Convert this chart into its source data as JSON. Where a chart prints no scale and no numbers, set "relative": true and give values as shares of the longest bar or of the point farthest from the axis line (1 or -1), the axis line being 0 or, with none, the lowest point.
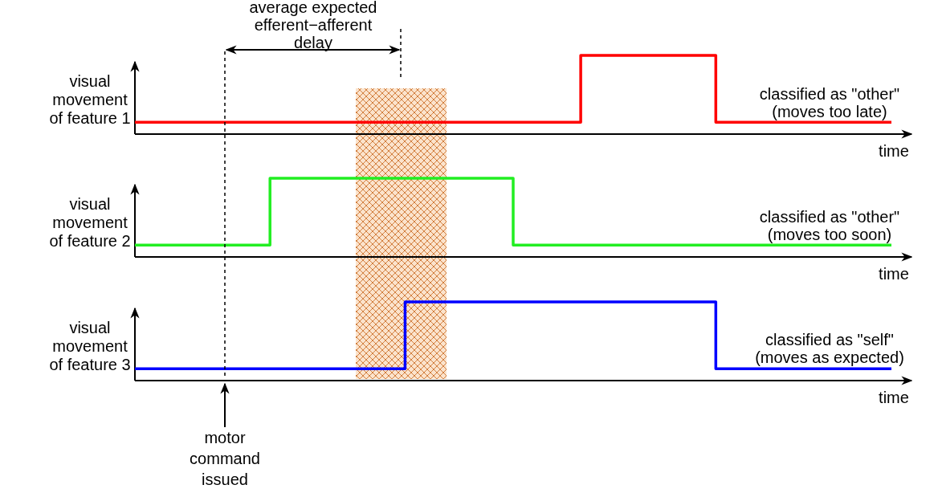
{
  "chart_data": [
    {
      "type": "step",
      "relative": true,
      "categories": [
        null,
        null,
        null,
        null,
        null,
        null,
        null,
        null,
        null,
        null,
        null,
        null,
        null,
        null,
        null,
        null,
        null,
        null,
        null,
        null,
        null,
        null,
        null,
        null,
        null,
        null,
        null,
        null,
        null,
        null,
        null,
        null,
        null,
        null,
        null,
        null,
        null,
        null,
        null,
        null,
        null,
        null,
        null,
        null,
        null,
        null,
        null,
        null,
        null,
        null,
        null,
        null,
        null,
        null,
        null,
        null,
        null
      ],
      "series": [
        {
          "color": "#ff0000",
          "values": [
            0.15,
            0.15,
            0.15,
            0.15,
            0.15,
            0.15,
            0.15,
            0.15,
            0.15,
            0.15,
            0.15,
            0.15,
            0.15,
            0.15,
            0.15,
            0.15,
            0.15,
            0.15,
            0.15,
            0.15,
            0.15,
            0.15,
            0.15,
            0.15,
            0.15,
            0.15,
            0.15,
            0.15,
            0.15,
            0.15,
            0.15,
            0.15,
            0.15,
            1,
            1,
            1,
            1,
            1,
            1,
            1,
            1,
            1,
            1,
            0.15,
            0.15,
            0.15,
            0.15,
            0.15,
            0.15,
            0.15,
            0.15,
            0.15,
            0.15,
            0.15,
            0.15,
            0.15,
            0.15
          ]
        }
      ],
      "ylabel": "visual\nmovement\nof feature 1",
      "xlabel": "time",
      "annotations": [
        "classified as \"other\"\n(moves too late)",
        "average expected\nefferent−afferent\ndelay"
      ]
    },
    {
      "type": "step",
      "relative": true,
      "categories": [
        null,
        null,
        null,
        null,
        null,
        null,
        null,
        null,
        null,
        null,
        null,
        null,
        null,
        null,
        null,
        null,
        null,
        null,
        null,
        null,
        null,
        null,
        null,
        null,
        null,
        null,
        null,
        null,
        null,
        null,
        null,
        null,
        null,
        null,
        null,
        null,
        null,
        null,
        null,
        null,
        null,
        null,
        null,
        null,
        null,
        null,
        null,
        null,
        null,
        null,
        null,
        null,
        null,
        null,
        null,
        null,
        null
      ],
      "series": [
        {
          "color": "#22ee22",
          "values": [
            0.15,
            0.15,
            0.15,
            0.15,
            0.15,
            0.15,
            0.15,
            0.15,
            0.15,
            0.15,
            1,
            1,
            1,
            1,
            1,
            1,
            1,
            1,
            1,
            1,
            1,
            1,
            1,
            1,
            1,
            1,
            1,
            1,
            0.15,
            0.15,
            0.15,
            0.15,
            0.15,
            0.15,
            0.15,
            0.15,
            0.15,
            0.15,
            0.15,
            0.15,
            0.15,
            0.15,
            0.15,
            0.15,
            0.15,
            0.15,
            0.15,
            0.15,
            0.15,
            0.15,
            0.15,
            0.15,
            0.15,
            0.15,
            0.15,
            0.15,
            0.15
          ]
        }
      ],
      "ylabel": "visual\nmovement\nof feature 2",
      "xlabel": "time",
      "annotations": [
        "classified as \"other\"\n(moves too soon)"
      ]
    },
    {
      "type": "step",
      "relative": true,
      "categories": [
        null,
        null,
        null,
        null,
        null,
        null,
        null,
        null,
        null,
        null,
        null,
        null,
        null,
        null,
        null,
        null,
        null,
        null,
        null,
        null,
        null,
        null,
        null,
        null,
        null,
        null,
        null,
        null,
        null,
        null,
        null,
        null,
        null,
        null,
        null,
        null,
        null,
        null,
        null,
        null,
        null,
        null,
        null,
        null,
        null,
        null,
        null,
        null,
        null,
        null,
        null,
        null,
        null,
        null,
        null,
        null,
        null
      ],
      "series": [
        {
          "color": "#0000ff",
          "values": [
            0.15,
            0.15,
            0.15,
            0.15,
            0.15,
            0.15,
            0.15,
            0.15,
            0.15,
            0.15,
            0.15,
            0.15,
            0.15,
            0.15,
            0.15,
            0.15,
            0.15,
            0.15,
            0.15,
            0.15,
            1,
            1,
            1,
            1,
            1,
            1,
            1,
            1,
            1,
            1,
            1,
            1,
            1,
            1,
            1,
            1,
            1,
            1,
            1,
            1,
            1,
            1,
            1,
            0.15,
            0.15,
            0.15,
            0.15,
            0.15,
            0.15,
            0.15,
            0.15,
            0.15,
            0.15,
            0.15,
            0.15,
            0.15,
            0.15
          ]
        }
      ],
      "ylabel": "visual\nmovement\nof feature 3",
      "xlabel": "time",
      "annotations": [
        "classified as \"self\"\n(moves as expected)",
        "motor\ncommand\nissued"
      ]
    }
  ]
}
